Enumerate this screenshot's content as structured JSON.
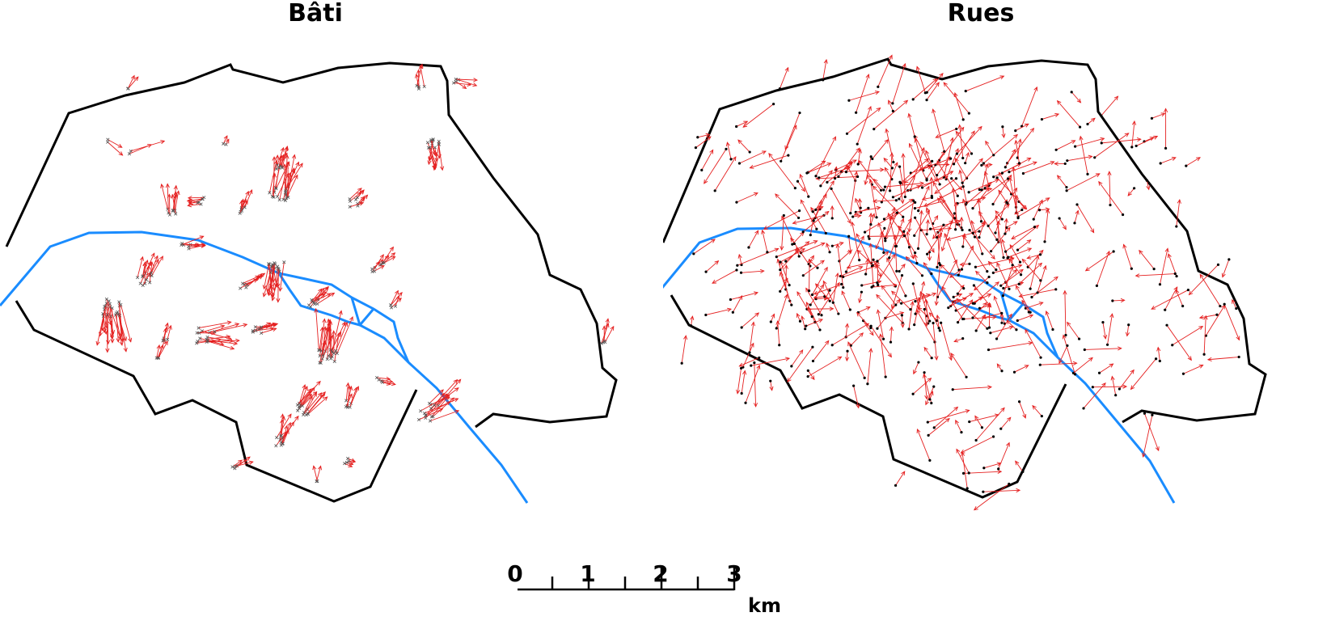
{
  "panels": {
    "left": {
      "title": "Bâti"
    },
    "right": {
      "title": "Rues"
    }
  },
  "scale_bar": {
    "ticks": [
      "0",
      "1",
      "2",
      "3"
    ],
    "unit": "km"
  },
  "colors": {
    "boundary": "#000000",
    "river": "#1a8cff",
    "arrows": "#e52020",
    "building_marker": "#555555",
    "street_marker": "#000000"
  },
  "icons": {
    "displacement_arrow": "arrow-icon",
    "building_point": "x-marker-icon",
    "street_point": "dot-marker-icon"
  }
}
